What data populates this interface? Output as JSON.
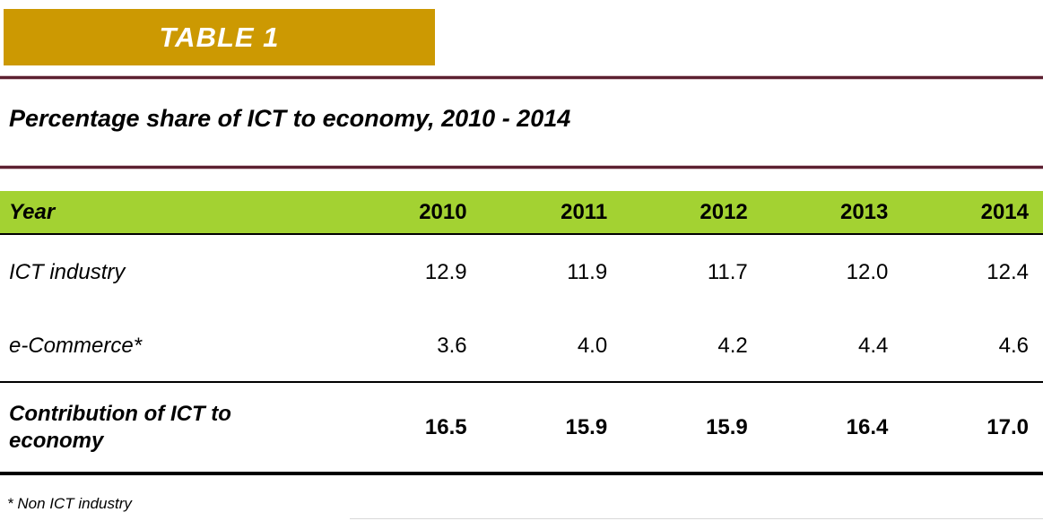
{
  "badge": {
    "label": "TABLE 1"
  },
  "title": "Percentage share of ICT to economy, 2010 - 2014",
  "table": {
    "header": [
      "Year",
      "2010",
      "2011",
      "2012",
      "2013",
      "2014"
    ],
    "rows": [
      {
        "label": "ICT industry",
        "values": [
          "12.9",
          "11.9",
          "11.7",
          "12.0",
          "12.4"
        ]
      },
      {
        "label": "e-Commerce*",
        "values": [
          "3.6",
          "4.0",
          "4.2",
          "4.4",
          "4.6"
        ]
      },
      {
        "label": "Contribution of ICT to economy",
        "values": [
          "16.5",
          "15.9",
          "15.9",
          "16.4",
          "17.0"
        ]
      }
    ]
  },
  "footnote": "* Non ICT industry",
  "colors": {
    "badge_bg": "#CC9902",
    "badge_text": "#FFFFFF",
    "header_row_bg": "#A3D232",
    "divider_maroon": "#5C2031",
    "divider_edge": "#D9C3C8",
    "table_border": "#000000",
    "text": "#000000"
  },
  "chart_data": {
    "type": "table",
    "title": "Percentage share of ICT to economy, 2010 - 2014",
    "categories": [
      "2010",
      "2011",
      "2012",
      "2013",
      "2014"
    ],
    "series": [
      {
        "name": "ICT industry",
        "values": [
          12.9,
          11.9,
          11.7,
          12.0,
          12.4
        ]
      },
      {
        "name": "e-Commerce*",
        "values": [
          3.6,
          4.0,
          4.2,
          4.4,
          4.6
        ]
      },
      {
        "name": "Contribution of ICT to economy",
        "values": [
          16.5,
          15.9,
          15.9,
          16.4,
          17.0
        ]
      }
    ],
    "footnote": "* Non ICT industry"
  }
}
